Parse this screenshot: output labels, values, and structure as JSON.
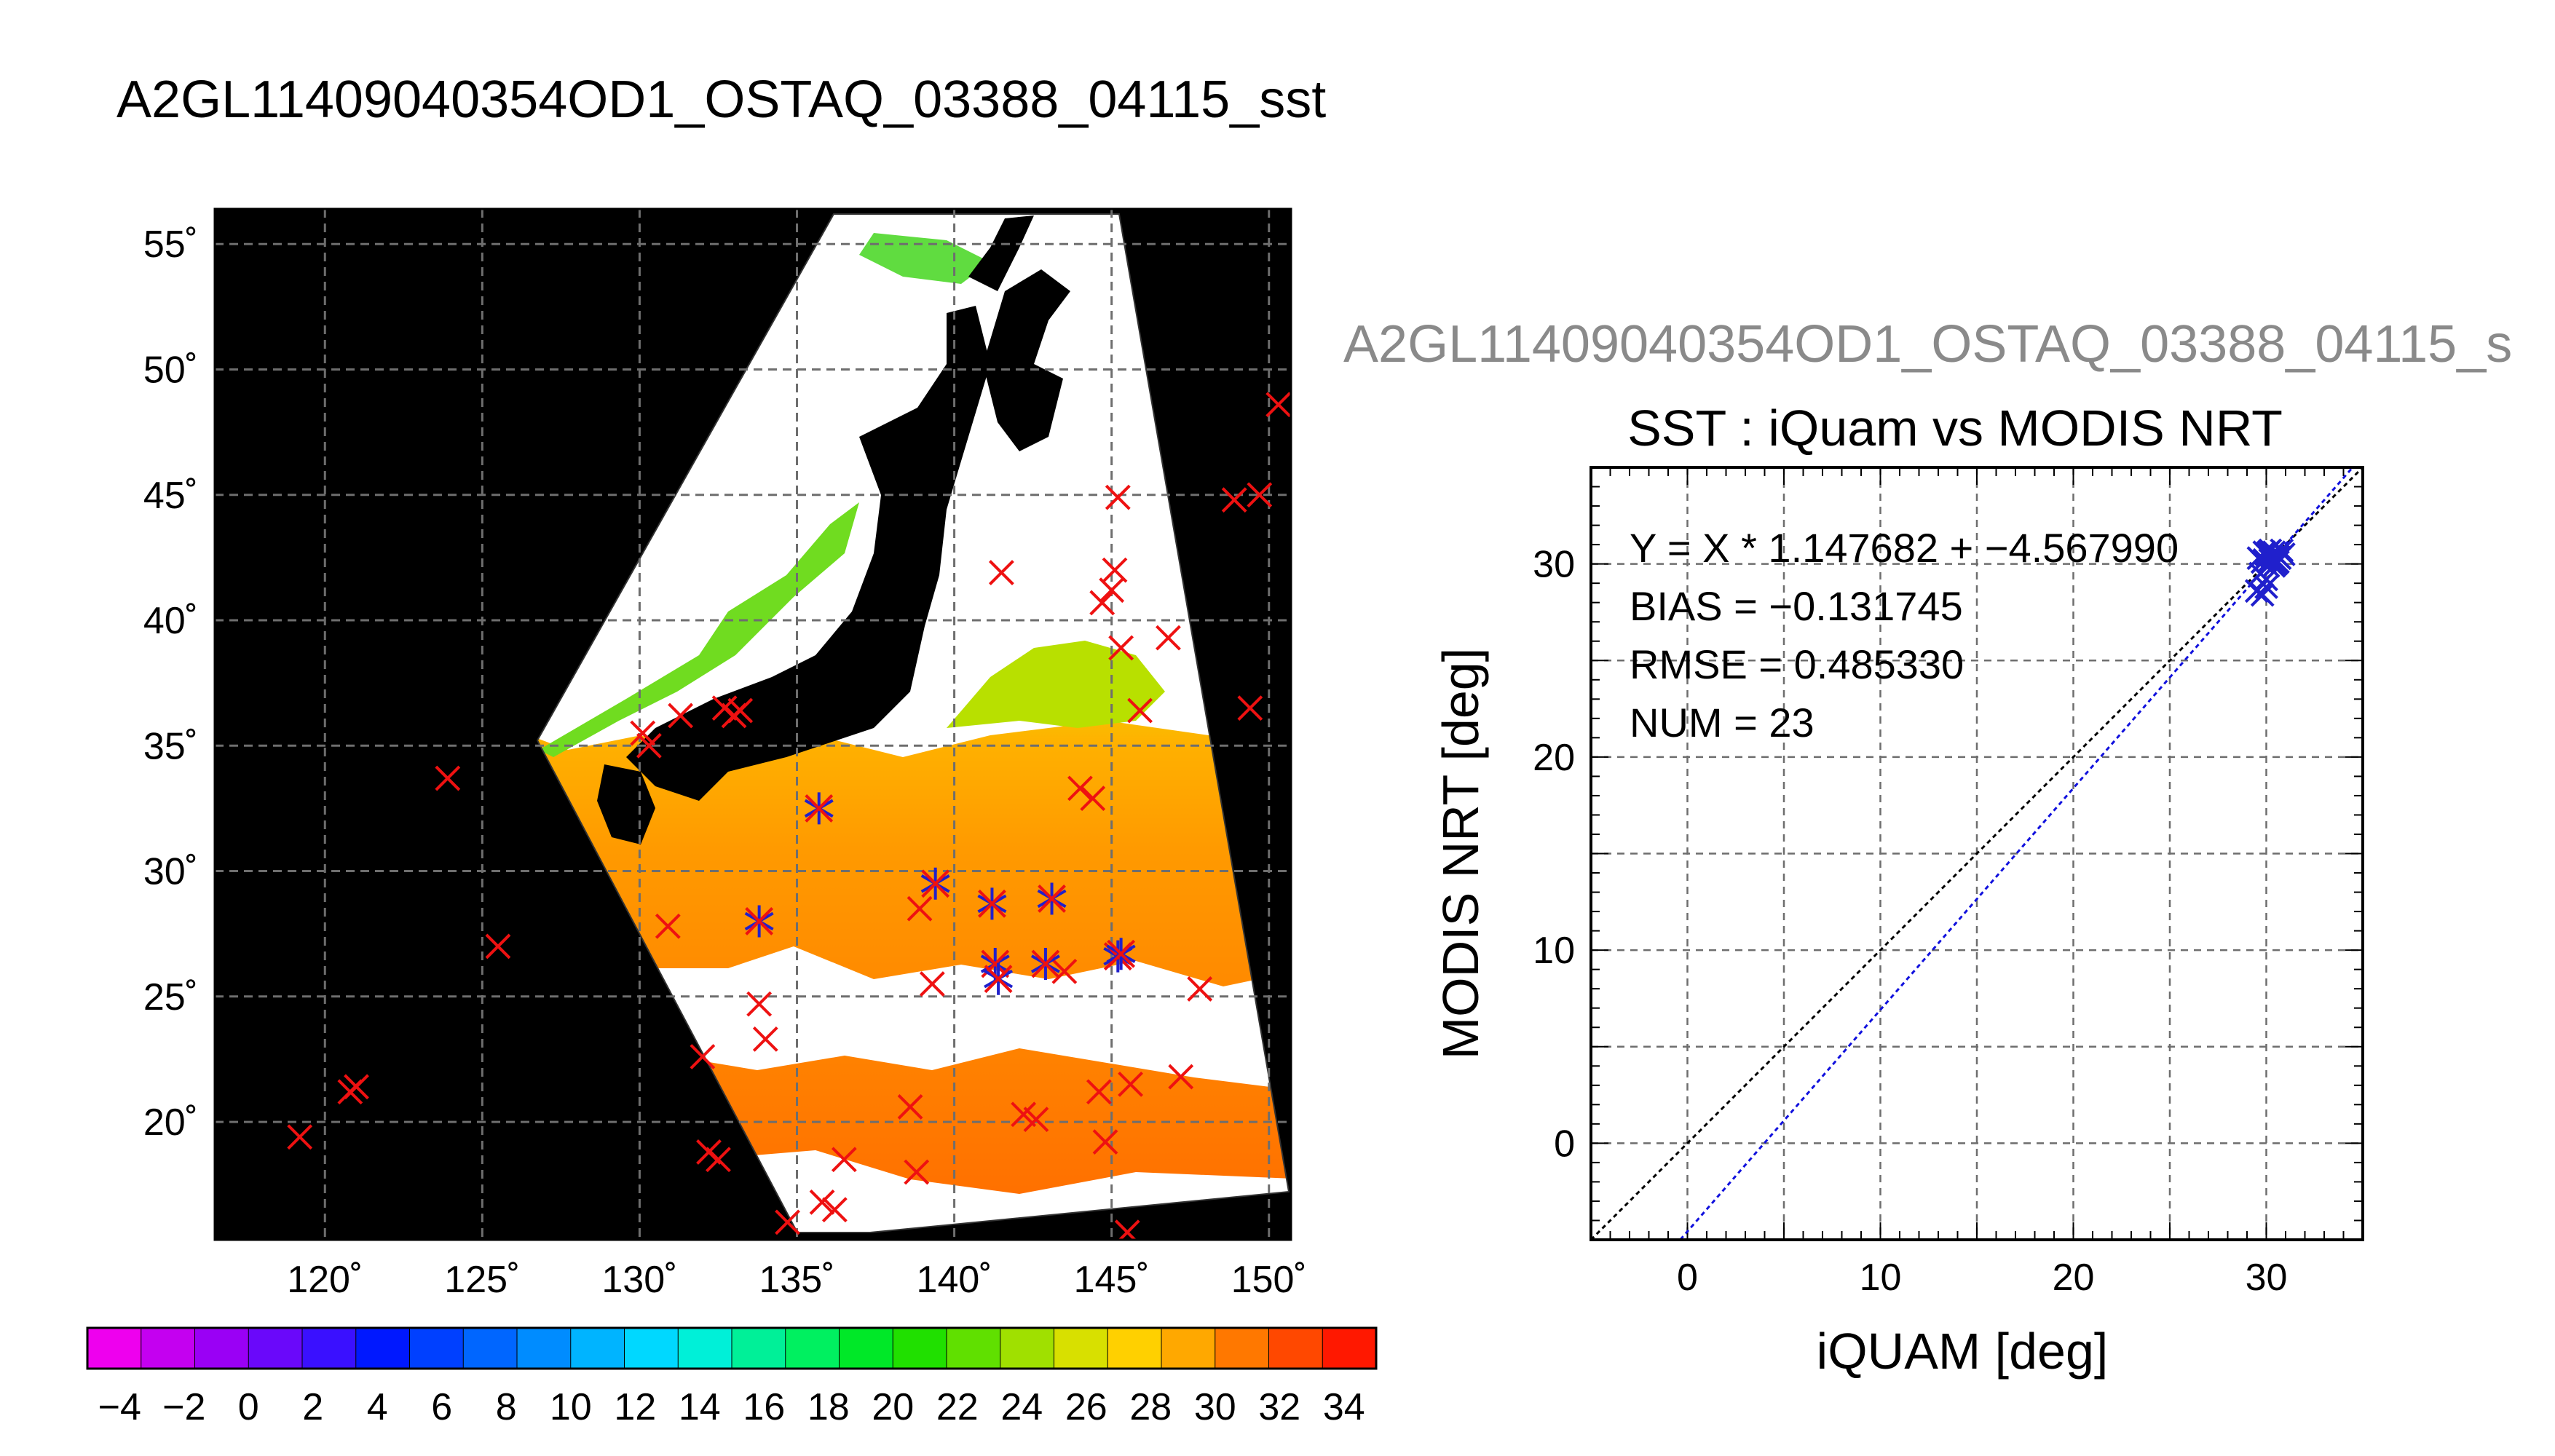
{
  "page": {
    "title": "A2GL11409040354OD1_OSTAQ_03388_04115_sst",
    "scatter_file_title": "A2GL11409040354OD1_OSTAQ_03388_04115_s"
  },
  "colors": {
    "land": "#000000",
    "cloud": "#ffffff",
    "grid": "#6e6e6e",
    "marker_all": "#ee1111",
    "marker_matched": "#2020cc",
    "fit_line": "#1010dd",
    "identity_line": "#000000"
  },
  "chart_data": [
    {
      "type": "map",
      "title": "",
      "lon_ticks": [
        120,
        125,
        130,
        135,
        140,
        145,
        150
      ],
      "lon_tick_labels": [
        "120˚",
        "125˚",
        "130˚",
        "135˚",
        "140˚",
        "145˚",
        "150˚"
      ],
      "lat_ticks": [
        20,
        25,
        30,
        35,
        40,
        45,
        50,
        55
      ],
      "lat_tick_labels": [
        "20˚",
        "25˚",
        "30˚",
        "35˚",
        "40˚",
        "45˚",
        "50˚",
        "55˚"
      ],
      "lon_range": [
        116.5,
        150.7
      ],
      "lat_range": [
        15.3,
        56.4
      ],
      "grid": true,
      "observations_all": [
        [
          119.2,
          19.4
        ],
        [
          120.8,
          21.2
        ],
        [
          121.0,
          21.4
        ],
        [
          123.9,
          33.7
        ],
        [
          125.5,
          27.0
        ],
        [
          130.1,
          35.5
        ],
        [
          130.3,
          35.0
        ],
        [
          130.9,
          27.8
        ],
        [
          131.3,
          36.2
        ],
        [
          132.0,
          22.6
        ],
        [
          132.2,
          18.8
        ],
        [
          132.5,
          18.5
        ],
        [
          132.7,
          36.5
        ],
        [
          133.0,
          36.2
        ],
        [
          133.2,
          36.4
        ],
        [
          133.8,
          24.7
        ],
        [
          134.0,
          23.3
        ],
        [
          134.7,
          16.0
        ],
        [
          135.8,
          16.8
        ],
        [
          136.2,
          16.5
        ],
        [
          136.5,
          18.5
        ],
        [
          138.6,
          20.6
        ],
        [
          138.8,
          18.0
        ],
        [
          138.9,
          28.5
        ],
        [
          139.3,
          25.5
        ],
        [
          141.5,
          41.9
        ],
        [
          142.2,
          20.3
        ],
        [
          142.6,
          20.1
        ],
        [
          143.5,
          26.0
        ],
        [
          144.0,
          33.3
        ],
        [
          144.4,
          32.9
        ],
        [
          144.6,
          21.2
        ],
        [
          144.8,
          19.2
        ],
        [
          144.7,
          40.7
        ],
        [
          145.0,
          41.2
        ],
        [
          145.1,
          42.0
        ],
        [
          145.2,
          44.9
        ],
        [
          145.3,
          38.9
        ],
        [
          145.6,
          21.5
        ],
        [
          145.9,
          36.4
        ],
        [
          146.8,
          39.3
        ],
        [
          147.2,
          21.8
        ],
        [
          147.8,
          25.3
        ],
        [
          148.9,
          44.8
        ],
        [
          149.4,
          36.5
        ],
        [
          149.7,
          45.0
        ],
        [
          150.3,
          48.6
        ],
        [
          145.5,
          15.6
        ]
      ],
      "observations_matched": [
        [
          135.7,
          32.5
        ],
        [
          133.8,
          28.0
        ],
        [
          139.4,
          29.5
        ],
        [
          141.2,
          28.7
        ],
        [
          143.1,
          28.9
        ],
        [
          141.3,
          26.3
        ],
        [
          141.4,
          25.7
        ],
        [
          142.9,
          26.3
        ],
        [
          145.2,
          26.6
        ],
        [
          145.3,
          26.7
        ]
      ],
      "colorbar": {
        "min": -5,
        "max": 35,
        "step": 2,
        "tick_labels": [
          "−4",
          "−2",
          "0",
          "2",
          "4",
          "6",
          "8",
          "10",
          "12",
          "14",
          "16",
          "18",
          "20",
          "22",
          "24",
          "26",
          "28",
          "30",
          "32",
          "34"
        ],
        "colors": [
          "#ee00ee",
          "#c400f0",
          "#9a00f5",
          "#6a08fa",
          "#3a10ff",
          "#0018ff",
          "#0040ff",
          "#0066ff",
          "#008cff",
          "#00b4ff",
          "#00d8ff",
          "#00f0d8",
          "#00f098",
          "#00f060",
          "#00e828",
          "#20e000",
          "#60e000",
          "#a0e000",
          "#d8e000",
          "#ffd000",
          "#ffa800",
          "#ff7800",
          "#ff4800",
          "#ff1800"
        ]
      }
    },
    {
      "type": "scatter",
      "title": "SST : iQuam vs MODIS NRT",
      "xlabel": "iQUAM [deg]",
      "ylabel": "MODIS NRT [deg]",
      "xlim": [
        -5,
        35
      ],
      "ylim": [
        -5,
        35
      ],
      "x_ticks": [
        0,
        10,
        20,
        30
      ],
      "y_ticks": [
        0,
        10,
        20,
        30
      ],
      "grid": true,
      "stats": [
        "Y = X * 1.147682 + −4.567990",
        "BIAS = −0.131745",
        "RMSE = 0.485330",
        "NUM = 23"
      ],
      "fit": {
        "slope": 1.147682,
        "intercept": -4.56799
      },
      "points": [
        [
          29.6,
          30.3
        ],
        [
          29.8,
          30.1
        ],
        [
          30.0,
          30.5
        ],
        [
          30.2,
          30.2
        ],
        [
          30.4,
          30.6
        ],
        [
          30.6,
          30.4
        ],
        [
          30.8,
          30.7
        ],
        [
          30.5,
          30.0
        ],
        [
          30.1,
          29.9
        ],
        [
          29.9,
          30.6
        ],
        [
          30.3,
          30.4
        ],
        [
          29.7,
          29.5
        ],
        [
          30.0,
          29.2
        ],
        [
          29.5,
          28.6
        ],
        [
          29.8,
          28.4
        ],
        [
          30.0,
          28.8
        ],
        [
          30.7,
          30.3
        ],
        [
          30.9,
          30.5
        ],
        [
          30.2,
          30.7
        ],
        [
          30.4,
          29.9
        ],
        [
          29.9,
          30.2
        ],
        [
          30.6,
          30.1
        ],
        [
          30.1,
          30.6
        ]
      ]
    }
  ]
}
